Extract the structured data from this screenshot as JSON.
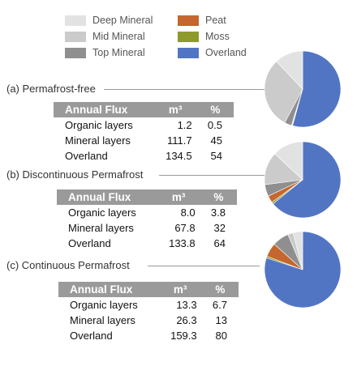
{
  "legend": [
    {
      "label": "Deep Mineral",
      "color": "#e2e2e2"
    },
    {
      "label": "Mid Mineral",
      "color": "#cbcbcb"
    },
    {
      "label": "Top Mineral",
      "color": "#8f8f8f"
    },
    {
      "label": "Peat",
      "color": "#c4662e"
    },
    {
      "label": "Moss",
      "color": "#8e9a2c"
    },
    {
      "label": "Overland",
      "color": "#5275c3"
    }
  ],
  "sections": [
    {
      "label": "(a) Permafrost-free",
      "headers": [
        "Annual Flux",
        "m³",
        "%"
      ],
      "rows": [
        [
          "Organic layers",
          "1.2",
          "0.5"
        ],
        [
          "Mineral layers",
          "111.7",
          "45"
        ],
        [
          "Overland",
          "134.5",
          "54"
        ]
      ]
    },
    {
      "label": "(b) Discontinuous Permafrost",
      "headers": [
        "Annual Flux",
        "m³",
        "%"
      ],
      "rows": [
        [
          "Organic layers",
          "8.0",
          "3.8"
        ],
        [
          "Mineral layers",
          "67.8",
          "32"
        ],
        [
          "Overland",
          "133.8",
          "64"
        ]
      ]
    },
    {
      "label": "(c) Continuous Permafrost",
      "headers": [
        "Annual Flux",
        "m³",
        "%"
      ],
      "rows": [
        [
          "Organic layers",
          "13.3",
          "6.7"
        ],
        [
          "Mineral layers",
          "26.3",
          "13"
        ],
        [
          "Overland",
          "159.3",
          "80"
        ]
      ]
    }
  ],
  "chart_data": [
    {
      "type": "pie",
      "title": "(a) Permafrost-free",
      "labels": [
        "Overland",
        "Moss",
        "Peat",
        "Top Mineral",
        "Mid Mineral",
        "Deep Mineral"
      ],
      "values": [
        54,
        0.2,
        0.3,
        3,
        30,
        12
      ],
      "colors": [
        "#5275c3",
        "#8e9a2c",
        "#c4662e",
        "#8f8f8f",
        "#cbcbcb",
        "#e2e2e2"
      ]
    },
    {
      "type": "pie",
      "title": "(b) Discontinuous Permafrost",
      "labels": [
        "Overland",
        "Moss",
        "Peat",
        "Top Mineral",
        "Mid Mineral",
        "Deep Mineral"
      ],
      "values": [
        64,
        0.8,
        3,
        5,
        14,
        13
      ],
      "colors": [
        "#5275c3",
        "#8e9a2c",
        "#c4662e",
        "#8f8f8f",
        "#cbcbcb",
        "#e2e2e2"
      ]
    },
    {
      "type": "pie",
      "title": "(c) Continuous Permafrost",
      "labels": [
        "Overland",
        "Moss",
        "Peat",
        "Top Mineral",
        "Mid Mineral",
        "Deep Mineral"
      ],
      "values": [
        80,
        0.7,
        6,
        7,
        2.3,
        4
      ],
      "colors": [
        "#5275c3",
        "#8e9a2c",
        "#c4662e",
        "#8f8f8f",
        "#cbcbcb",
        "#e2e2e2"
      ]
    }
  ]
}
